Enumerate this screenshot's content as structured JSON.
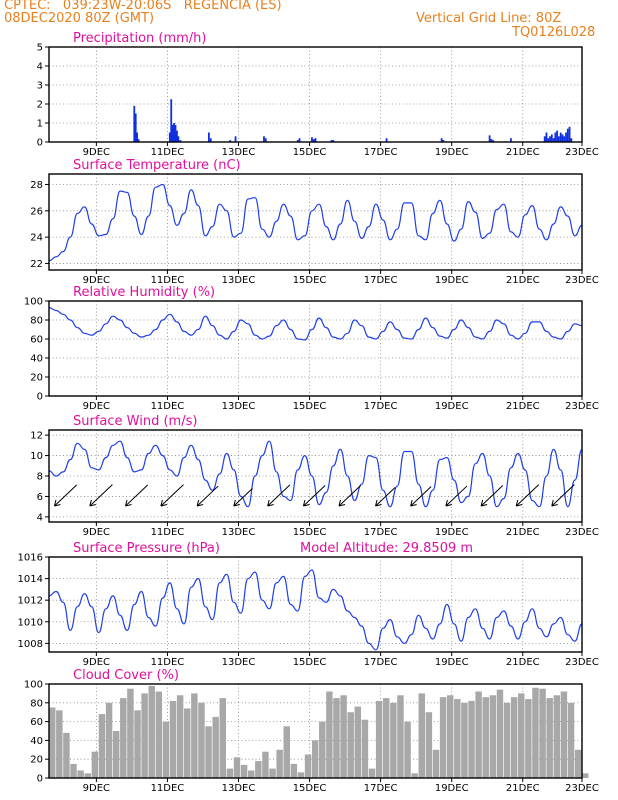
{
  "header": {
    "line1": "CPTEC:   039:23W-20:06S   REGENCIA (ES)",
    "line2_left": "08DEC2020 80Z (GMT)",
    "line2_right": "Vertical Grid Line: 80Z",
    "line3_right": "TQ0126L028"
  },
  "x_tick_labels": [
    "9DEC",
    "11DEC",
    "13DEC",
    "15DEC",
    "17DEC",
    "19DEC",
    "21DEC",
    "23DEC"
  ],
  "chart_data": [
    {
      "id": "precip",
      "type": "bar",
      "title": "Precipitation (mm/h)",
      "ylim": [
        0,
        5
      ],
      "yticks": [
        0,
        1,
        2,
        3,
        4,
        5
      ],
      "x_unit": "days after 08DEC 00Z",
      "series": [
        {
          "x": [
            2.4,
            2.44,
            2.48,
            2.52,
            3.4,
            3.44,
            3.48,
            3.52,
            3.56,
            3.6,
            3.64,
            3.7,
            4.5,
            4.55,
            5.1,
            5.25,
            6.05,
            6.1,
            7.0,
            7.05,
            7.4,
            7.45,
            7.5,
            7.95,
            8.0,
            9.5,
            11.05,
            11.1,
            12.4,
            12.45,
            12.5,
            13.0,
            13.95,
            14.0,
            14.05,
            14.1,
            14.15,
            14.2,
            14.25,
            14.3,
            14.35,
            14.4,
            14.45,
            14.5,
            14.55,
            14.6,
            14.65,
            14.7
          ],
          "values": [
            1.9,
            1.5,
            0.5,
            0.15,
            0.5,
            2.25,
            0.9,
            1.0,
            0.9,
            0.6,
            0.3,
            0.1,
            0.5,
            0.2,
            0.1,
            0.3,
            0.3,
            0.2,
            0.1,
            0.2,
            0.25,
            0.15,
            0.2,
            0.1,
            0.1,
            0.2,
            0.2,
            0.1,
            0.35,
            0.15,
            0.1,
            0.2,
            0.3,
            0.5,
            0.2,
            0.3,
            0.4,
            0.2,
            0.5,
            0.6,
            0.3,
            0.5,
            0.4,
            0.3,
            0.5,
            0.7,
            0.8,
            0.2
          ]
        }
      ]
    },
    {
      "id": "temp",
      "type": "line",
      "title": "Surface Temperature (nC)",
      "ylim": [
        21.5,
        28.8
      ],
      "yticks": [
        22,
        24,
        26,
        28
      ],
      "x_unit": "days after 08DEC 00Z",
      "series": [
        {
          "x": [
            0.0,
            0.2,
            0.4,
            0.6,
            0.8,
            1.0,
            1.2,
            1.4,
            1.6,
            1.8,
            2.0,
            2.2,
            2.4,
            2.6,
            2.8,
            3.0,
            3.2,
            3.4,
            3.6,
            3.8,
            4.0,
            4.2,
            4.4,
            4.6,
            4.8,
            5.0,
            5.2,
            5.4,
            5.6,
            5.8,
            6.0,
            6.2,
            6.4,
            6.6,
            6.8,
            7.0,
            7.2,
            7.4,
            7.6,
            7.8,
            8.0,
            8.2,
            8.4,
            8.6,
            8.8,
            9.0,
            9.2,
            9.4,
            9.6,
            9.8,
            10.0,
            10.2,
            10.4,
            10.6,
            10.8,
            11.0,
            11.2,
            11.4,
            11.6,
            11.8,
            12.0,
            12.2,
            12.4,
            12.6,
            12.8,
            13.0,
            13.2,
            13.4,
            13.6,
            13.8,
            14.0,
            14.2,
            14.4,
            14.6,
            14.8,
            15.0
          ],
          "values": [
            22.2,
            22.5,
            22.9,
            24.0,
            25.8,
            26.3,
            25.0,
            24.1,
            24.2,
            25.4,
            27.5,
            27.4,
            25.6,
            24.2,
            25.6,
            27.8,
            28.0,
            26.4,
            24.9,
            25.8,
            27.6,
            26.4,
            24.1,
            24.8,
            26.5,
            26.0,
            24.0,
            24.3,
            26.9,
            27.0,
            24.6,
            24.0,
            25.2,
            26.5,
            25.6,
            23.8,
            24.1,
            26.0,
            26.5,
            24.8,
            23.8,
            25.0,
            26.8,
            25.2,
            23.9,
            24.8,
            26.5,
            25.3,
            23.8,
            24.6,
            26.6,
            26.6,
            24.1,
            23.8,
            25.8,
            26.8,
            25.0,
            23.7,
            24.6,
            26.7,
            25.9,
            23.9,
            24.3,
            26.1,
            26.5,
            24.4,
            24.0,
            25.7,
            26.4,
            24.6,
            23.8,
            25.0,
            26.3,
            25.6,
            24.1,
            24.9
          ]
        }
      ]
    },
    {
      "id": "rh",
      "type": "line",
      "title": "Relative Humidity (%)",
      "ylim": [
        0,
        100
      ],
      "yticks": [
        0,
        20,
        40,
        60,
        80,
        100
      ],
      "x_unit": "days after 08DEC 00Z",
      "series": [
        {
          "x": [
            0.0,
            0.2,
            0.4,
            0.6,
            0.8,
            1.0,
            1.2,
            1.4,
            1.6,
            1.8,
            2.0,
            2.2,
            2.4,
            2.6,
            2.8,
            3.0,
            3.2,
            3.4,
            3.6,
            3.8,
            4.0,
            4.2,
            4.4,
            4.6,
            4.8,
            5.0,
            5.2,
            5.4,
            5.6,
            5.8,
            6.0,
            6.2,
            6.4,
            6.6,
            6.8,
            7.0,
            7.2,
            7.4,
            7.6,
            7.8,
            8.0,
            8.2,
            8.4,
            8.6,
            8.8,
            9.0,
            9.2,
            9.4,
            9.6,
            9.8,
            10.0,
            10.2,
            10.4,
            10.6,
            10.8,
            11.0,
            11.2,
            11.4,
            11.6,
            11.8,
            12.0,
            12.2,
            12.4,
            12.6,
            12.8,
            13.0,
            13.2,
            13.4,
            13.6,
            13.8,
            14.0,
            14.2,
            14.4,
            14.6,
            14.8,
            15.0
          ],
          "values": [
            93,
            90,
            86,
            80,
            72,
            66,
            64,
            68,
            76,
            84,
            80,
            72,
            66,
            62,
            64,
            70,
            80,
            86,
            78,
            68,
            64,
            70,
            84,
            74,
            64,
            60,
            68,
            80,
            76,
            64,
            60,
            63,
            74,
            80,
            70,
            60,
            59,
            70,
            82,
            72,
            62,
            60,
            66,
            80,
            74,
            62,
            60,
            68,
            78,
            70,
            61,
            60,
            70,
            82,
            72,
            63,
            61,
            70,
            80,
            72,
            62,
            60,
            68,
            80,
            76,
            64,
            60,
            66,
            78,
            78,
            68,
            62,
            60,
            68,
            76,
            74
          ]
        }
      ]
    },
    {
      "id": "wind",
      "type": "line",
      "title": "Surface Wind (m/s)",
      "ylim": [
        3.5,
        12.5
      ],
      "yticks": [
        4,
        6,
        8,
        10,
        12
      ],
      "x_unit": "days after 08DEC 00Z",
      "series": [
        {
          "x": [
            0.0,
            0.2,
            0.4,
            0.6,
            0.8,
            1.0,
            1.2,
            1.4,
            1.6,
            1.8,
            2.0,
            2.2,
            2.4,
            2.6,
            2.8,
            3.0,
            3.2,
            3.4,
            3.6,
            3.8,
            4.0,
            4.2,
            4.4,
            4.6,
            4.8,
            5.0,
            5.2,
            5.4,
            5.6,
            5.8,
            6.0,
            6.2,
            6.4,
            6.6,
            6.8,
            7.0,
            7.2,
            7.4,
            7.6,
            7.8,
            8.0,
            8.2,
            8.4,
            8.6,
            8.8,
            9.0,
            9.2,
            9.4,
            9.6,
            9.8,
            10.0,
            10.2,
            10.4,
            10.6,
            10.8,
            11.0,
            11.2,
            11.4,
            11.6,
            11.8,
            12.0,
            12.2,
            12.4,
            12.6,
            12.8,
            13.0,
            13.2,
            13.4,
            13.6,
            13.8,
            14.0,
            14.2,
            14.4,
            14.6,
            14.8,
            15.0
          ],
          "values": [
            8.5,
            8.0,
            8.4,
            9.6,
            11.2,
            10.6,
            8.8,
            8.6,
            9.8,
            11.0,
            11.4,
            9.8,
            8.4,
            8.6,
            10.2,
            11.0,
            10.0,
            8.6,
            8.0,
            9.8,
            11.0,
            9.6,
            7.6,
            6.6,
            8.2,
            10.2,
            8.6,
            6.0,
            5.0,
            8.0,
            10.0,
            11.4,
            8.4,
            6.0,
            5.6,
            8.6,
            10.0,
            8.0,
            5.2,
            6.4,
            9.0,
            10.6,
            8.0,
            5.6,
            7.2,
            10.0,
            9.8,
            6.6,
            5.0,
            7.0,
            10.4,
            10.4,
            7.2,
            5.0,
            6.6,
            9.6,
            9.8,
            7.6,
            5.4,
            6.0,
            9.2,
            10.2,
            8.0,
            5.0,
            5.8,
            8.8,
            10.2,
            8.6,
            5.6,
            5.0,
            8.0,
            10.6,
            8.6,
            5.0,
            7.6,
            10.6
          ]
        }
      ]
    },
    {
      "id": "pres",
      "type": "line",
      "title": "Surface Pressure (hPa)",
      "annotation": "Model Altitude: 29.8509 m",
      "ylim": [
        1007.2,
        1016.0
      ],
      "yticks": [
        1008,
        1010,
        1012,
        1014,
        1016
      ],
      "x_unit": "days after 08DEC 00Z",
      "series": [
        {
          "x": [
            0.0,
            0.2,
            0.4,
            0.6,
            0.8,
            1.0,
            1.2,
            1.4,
            1.6,
            1.8,
            2.0,
            2.2,
            2.4,
            2.6,
            2.8,
            3.0,
            3.2,
            3.4,
            3.6,
            3.8,
            4.0,
            4.2,
            4.4,
            4.6,
            4.8,
            5.0,
            5.2,
            5.4,
            5.6,
            5.8,
            6.0,
            6.2,
            6.4,
            6.6,
            6.8,
            7.0,
            7.2,
            7.4,
            7.6,
            7.8,
            8.0,
            8.2,
            8.4,
            8.6,
            8.8,
            9.0,
            9.2,
            9.4,
            9.6,
            9.8,
            10.0,
            10.2,
            10.4,
            10.6,
            10.8,
            11.0,
            11.2,
            11.4,
            11.6,
            11.8,
            12.0,
            12.2,
            12.4,
            12.6,
            12.8,
            13.0,
            13.2,
            13.4,
            13.6,
            13.8,
            14.0,
            14.2,
            14.4,
            14.6,
            14.8,
            15.0
          ],
          "values": [
            1012.4,
            1012.8,
            1011.8,
            1009.2,
            1011.4,
            1012.6,
            1011.4,
            1009.0,
            1011.2,
            1012.4,
            1010.6,
            1009.2,
            1011.6,
            1012.8,
            1010.4,
            1009.6,
            1012.2,
            1013.6,
            1011.2,
            1009.8,
            1013.2,
            1014.0,
            1011.4,
            1010.2,
            1013.6,
            1014.4,
            1011.8,
            1010.8,
            1014.0,
            1014.6,
            1012.0,
            1011.2,
            1013.6,
            1014.2,
            1011.6,
            1011.0,
            1014.2,
            1014.8,
            1012.2,
            1011.8,
            1013.0,
            1012.4,
            1011.0,
            1010.4,
            1009.6,
            1008.0,
            1007.4,
            1009.4,
            1010.2,
            1008.6,
            1008.0,
            1008.8,
            1010.6,
            1009.4,
            1008.4,
            1009.8,
            1011.6,
            1009.8,
            1008.2,
            1010.4,
            1011.2,
            1009.4,
            1008.4,
            1010.4,
            1011.0,
            1009.6,
            1008.4,
            1010.0,
            1011.2,
            1009.4,
            1008.6,
            1009.8,
            1010.4,
            1008.8,
            1008.2,
            1009.8
          ]
        }
      ]
    },
    {
      "id": "cloud",
      "type": "bar",
      "title": "Cloud Cover (%)",
      "ylim": [
        0,
        100
      ],
      "yticks": [
        0,
        20,
        40,
        60,
        80,
        100
      ],
      "x_unit": "days after 08DEC 00Z",
      "series": [
        {
          "x": [
            0.0,
            0.2,
            0.4,
            0.6,
            0.8,
            1.0,
            1.2,
            1.4,
            1.6,
            1.8,
            2.0,
            2.2,
            2.4,
            2.6,
            2.8,
            3.0,
            3.2,
            3.4,
            3.6,
            3.8,
            4.0,
            4.2,
            4.4,
            4.6,
            4.8,
            5.0,
            5.2,
            5.4,
            5.6,
            5.8,
            6.0,
            6.2,
            6.4,
            6.6,
            6.8,
            7.0,
            7.2,
            7.4,
            7.6,
            7.8,
            8.0,
            8.2,
            8.4,
            8.6,
            8.8,
            9.0,
            9.2,
            9.4,
            9.6,
            9.8,
            10.0,
            10.2,
            10.4,
            10.6,
            10.8,
            11.0,
            11.2,
            11.4,
            11.6,
            11.8,
            12.0,
            12.2,
            12.4,
            12.6,
            12.8,
            13.0,
            13.2,
            13.4,
            13.6,
            13.8,
            14.0,
            14.2,
            14.4,
            14.6,
            14.8,
            15.0
          ],
          "values": [
            75,
            72,
            48,
            15,
            8,
            5,
            28,
            68,
            80,
            50,
            85,
            95,
            72,
            90,
            98,
            92,
            60,
            82,
            88,
            74,
            90,
            80,
            55,
            65,
            85,
            10,
            22,
            14,
            8,
            18,
            28,
            10,
            30,
            55,
            15,
            6,
            25,
            40,
            60,
            92,
            85,
            88,
            70,
            76,
            62,
            10,
            82,
            85,
            80,
            88,
            60,
            5,
            90,
            70,
            30,
            86,
            88,
            84,
            80,
            82,
            92,
            86,
            88,
            94,
            80,
            86,
            90,
            84,
            96,
            95,
            85,
            88,
            92,
            80,
            30,
            5
          ]
        }
      ]
    }
  ]
}
